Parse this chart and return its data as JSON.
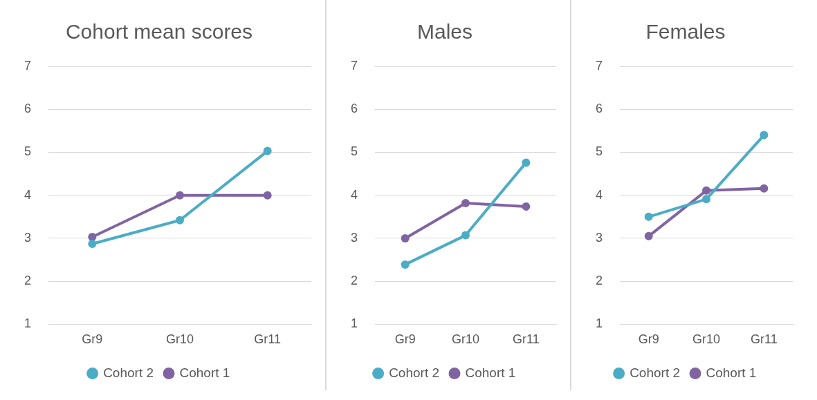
{
  "chart_data": [
    {
      "type": "line",
      "title": "Cohort mean scores",
      "categories": [
        "Gr9",
        "Gr10",
        "Gr11"
      ],
      "ylim": [
        1,
        7
      ],
      "yticks": [
        1,
        2,
        3,
        4,
        5,
        6,
        7
      ],
      "grid": "y",
      "legend": "bottom",
      "marker": "circle",
      "series": [
        {
          "name": "Cohort 2",
          "color": "#4bacc6",
          "values": [
            2.87,
            3.42,
            5.03
          ]
        },
        {
          "name": "Cohort 1",
          "color": "#8064a2",
          "values": [
            3.03,
            4.0,
            4.0
          ]
        }
      ]
    },
    {
      "type": "line",
      "title": "Males",
      "categories": [
        "Gr9",
        "Gr10",
        "Gr11"
      ],
      "ylim": [
        1,
        7
      ],
      "yticks": [
        1,
        2,
        3,
        4,
        5,
        6,
        7
      ],
      "grid": "y",
      "legend": "bottom",
      "marker": "circle",
      "series": [
        {
          "name": "Cohort 2",
          "color": "#4bacc6",
          "values": [
            2.39,
            3.07,
            4.76
          ]
        },
        {
          "name": "Cohort 1",
          "color": "#8064a2",
          "values": [
            3.0,
            3.82,
            3.74
          ]
        }
      ]
    },
    {
      "type": "line",
      "title": "Females",
      "categories": [
        "Gr9",
        "Gr10",
        "Gr11"
      ],
      "ylim": [
        1,
        7
      ],
      "yticks": [
        1,
        2,
        3,
        4,
        5,
        6,
        7
      ],
      "grid": "y",
      "legend": "bottom",
      "marker": "circle",
      "series": [
        {
          "name": "Cohort 2",
          "color": "#4bacc6",
          "values": [
            3.5,
            3.91,
            5.4
          ]
        },
        {
          "name": "Cohort 1",
          "color": "#8064a2",
          "values": [
            3.05,
            4.11,
            4.16
          ]
        }
      ]
    }
  ]
}
